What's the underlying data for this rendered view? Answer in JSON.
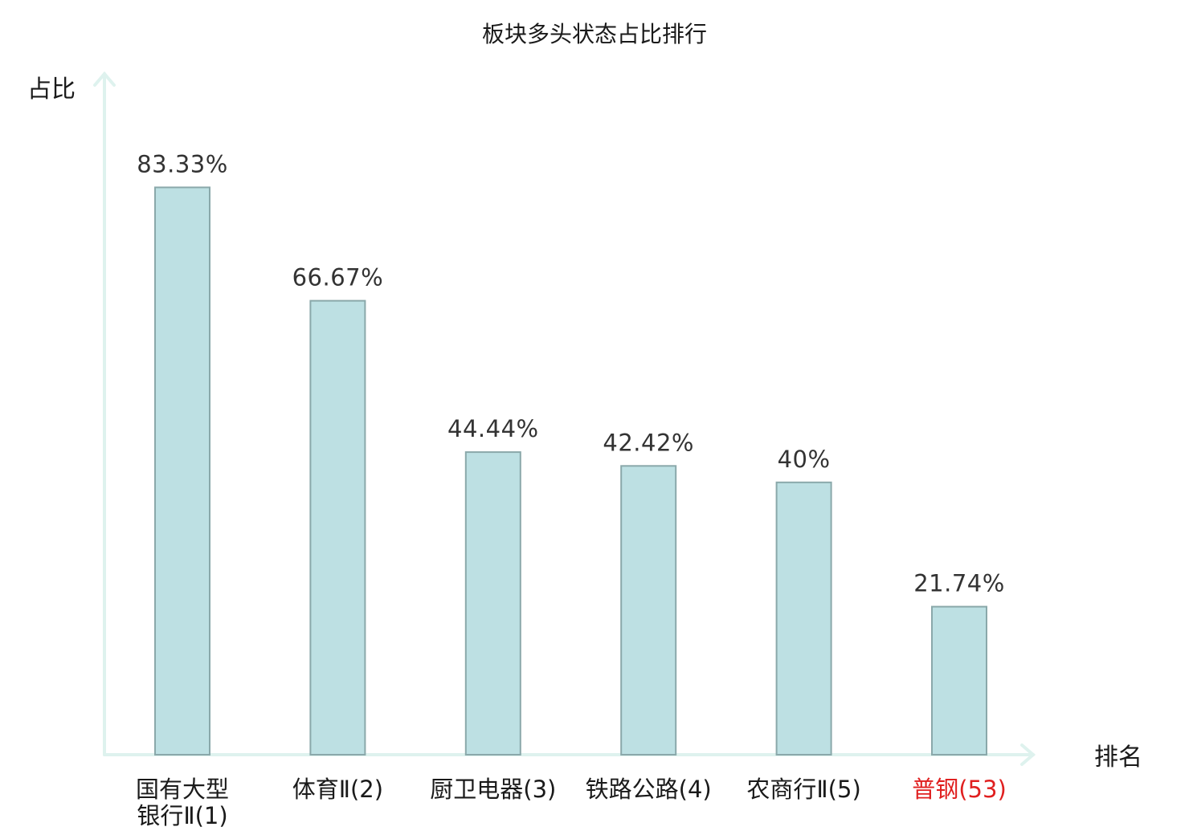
{
  "chart_data": {
    "type": "bar",
    "title": "板块多头状态占比排行",
    "ylabel": "占比",
    "xlabel": "排名",
    "ylim": [
      0,
      100
    ],
    "categories": [
      [
        "国有大型",
        "银行Ⅱ(1)"
      ],
      [
        "体育Ⅱ(2)"
      ],
      [
        "厨卫电器(3)"
      ],
      [
        "铁路公路(4)"
      ],
      [
        "农商行Ⅱ(5)"
      ],
      [
        "普钢(53)"
      ]
    ],
    "values": [
      83.33,
      66.67,
      44.44,
      42.42,
      40,
      21.74
    ],
    "value_labels": [
      "83.33%",
      "66.67%",
      "44.44%",
      "42.42%",
      "40%",
      "21.74%"
    ],
    "highlight_index": 5,
    "colors": {
      "bar_fill": "#bde0e3",
      "bar_stroke": "#8aa8aa",
      "axis": "#def2ee",
      "highlight_label": "#e02020"
    }
  }
}
